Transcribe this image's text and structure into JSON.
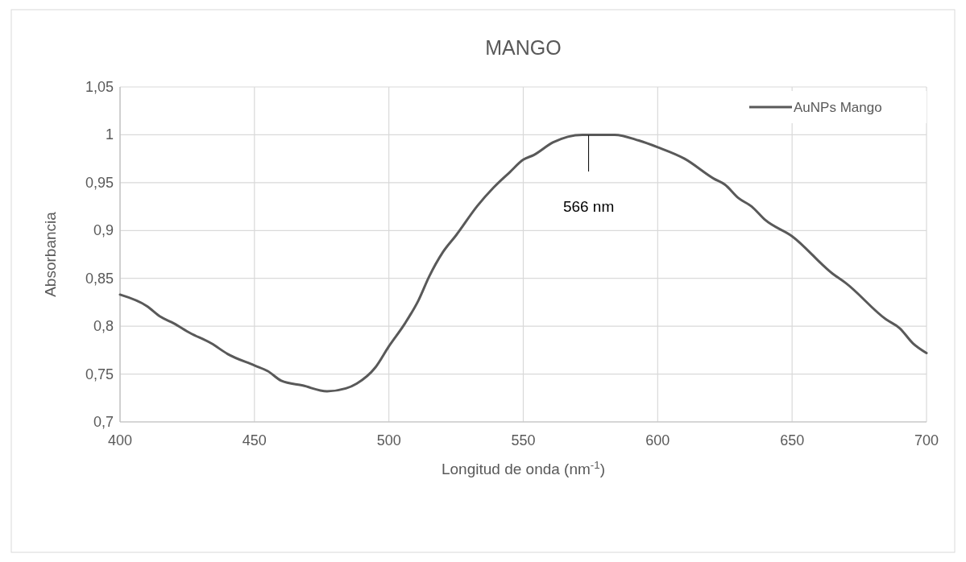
{
  "chart_data": {
    "type": "line",
    "title": "MANGO",
    "xlabel": "Longitud de onda  (nm$^{-1}$)",
    "ylabel": "Absorbancia",
    "xlim": [
      400,
      700
    ],
    "xticks": [
      400,
      450,
      500,
      550,
      600,
      650,
      700
    ],
    "ylim": [
      0.7,
      1.05
    ],
    "yticks": [
      {
        "value": 0.7,
        "label": "0,7"
      },
      {
        "value": 0.75,
        "label": "0,75"
      },
      {
        "value": 0.8,
        "label": "0,8"
      },
      {
        "value": 0.85,
        "label": "0,85"
      },
      {
        "value": 0.9,
        "label": "0,9"
      },
      {
        "value": 0.95,
        "label": "0,95"
      },
      1,
      {
        "value": 1.05,
        "label": "1,05"
      }
    ],
    "grid": true,
    "legend": "top right",
    "marker": "none",
    "line_style": "solid",
    "annotations": [
      "566 nm"
    ],
    "series": [
      {
        "name": "AuNPs Mango",
        "color": "#595959",
        "x": [
          400,
          410,
          415,
          420,
          426,
          434,
          440,
          450,
          455,
          460,
          468,
          477,
          484,
          488,
          495,
          500,
          506,
          511,
          515,
          520,
          525,
          533,
          539,
          545,
          550,
          554,
          561,
          572,
          584,
          593,
          600,
          610,
          621,
          625,
          630,
          635,
          640,
          650,
          665,
          670,
          685,
          690,
          695,
          700
        ],
        "values": [
          0.833,
          0.821,
          0.81,
          0.803,
          0.793,
          0.782,
          0.771,
          0.759,
          0.753,
          0.743,
          0.738,
          0.732,
          0.735,
          0.74,
          0.757,
          0.779,
          0.803,
          0.827,
          0.852,
          0.877,
          0.895,
          0.926,
          0.945,
          0.961,
          0.974,
          0.979,
          0.992,
          1.0,
          1.0,
          0.994,
          0.987,
          0.975,
          0.954,
          0.948,
          0.934,
          0.925,
          0.911,
          0.894,
          0.855,
          0.845,
          0.807,
          0.798,
          0.782,
          0.772
        ]
      }
    ]
  }
}
